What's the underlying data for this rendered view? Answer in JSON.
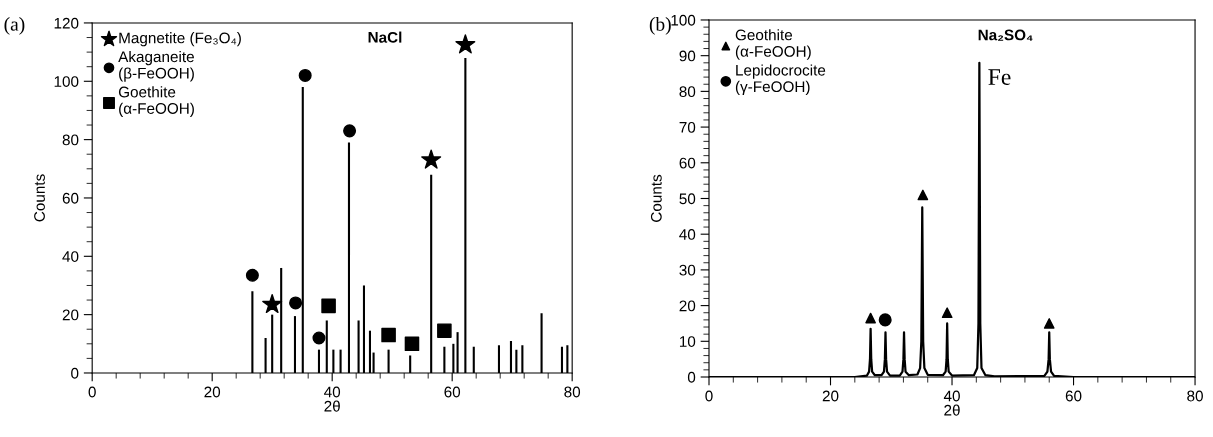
{
  "chart_data": [
    {
      "type": "bar",
      "title": "NaCl",
      "xlabel": "2θ",
      "ylabel": "Counts",
      "annotations": [
        "(a)"
      ],
      "legend": "top left",
      "grid": false,
      "xlim": [
        0,
        80
      ],
      "xticks": [
        0,
        {
          "value": 4,
          "label": null
        },
        {
          "value": 8,
          "label": null
        },
        {
          "value": 12,
          "label": null
        },
        {
          "value": 16,
          "label": null
        },
        20,
        {
          "value": 24,
          "label": null
        },
        {
          "value": 28,
          "label": null
        },
        {
          "value": 32,
          "label": null
        },
        {
          "value": 36,
          "label": null
        },
        40,
        {
          "value": 44,
          "label": null
        },
        {
          "value": 48,
          "label": null
        },
        {
          "value": 52,
          "label": null
        },
        {
          "value": 56,
          "label": null
        },
        60,
        {
          "value": 64,
          "label": null
        },
        {
          "value": 68,
          "label": null
        },
        {
          "value": 72,
          "label": null
        },
        {
          "value": 76,
          "label": null
        },
        80
      ],
      "ylim": [
        0,
        120
      ],
      "yticks": [
        0,
        {
          "value": 5,
          "label": null
        },
        {
          "value": 10,
          "label": null
        },
        {
          "value": 15,
          "label": null
        },
        20,
        {
          "value": 25,
          "label": null
        },
        {
          "value": 30,
          "label": null
        },
        {
          "value": 35,
          "label": null
        },
        40,
        {
          "value": 45,
          "label": null
        },
        {
          "value": 50,
          "label": null
        },
        {
          "value": 55,
          "label": null
        },
        60,
        {
          "value": 65,
          "label": null
        },
        {
          "value": 70,
          "label": null
        },
        {
          "value": 75,
          "label": null
        },
        80,
        {
          "value": 85,
          "label": null
        },
        {
          "value": 90,
          "label": null
        },
        {
          "value": 95,
          "label": null
        },
        100,
        {
          "value": 105,
          "label": null
        },
        {
          "value": 110,
          "label": null
        },
        {
          "value": 115,
          "label": null
        },
        120
      ],
      "series": [
        {
          "color": "#000000",
          "x": [
            26.7,
            28.9,
            30.0,
            31.5,
            33.8,
            35.1,
            37.8,
            39.1,
            40.2,
            41.4,
            42.8,
            44.4,
            45.3,
            46.3,
            46.9,
            49.4,
            53.0,
            56.5,
            58.7,
            60.2,
            60.9,
            62.2,
            63.6,
            67.8,
            69.8,
            70.7,
            71.7,
            74.9,
            78.3,
            79.2
          ],
          "values": [
            28,
            12,
            20,
            36,
            19.5,
            98,
            8,
            18,
            8,
            8,
            79,
            18,
            30,
            14.5,
            7,
            8,
            6,
            68,
            9,
            10,
            14,
            108,
            9,
            9.5,
            11,
            8,
            9.5,
            20.5,
            9,
            9.5
          ]
        },
        {
          "type": "scatter",
          "name": "Magnetite (Fe₃O₄)",
          "color": "#000000",
          "marker": "star",
          "x": [
            30.0,
            56.5,
            62.2
          ],
          "values": [
            23.5,
            73,
            112.5
          ]
        },
        {
          "type": "scatter",
          "name": "Akaganeite\n(β-FeOOH)",
          "color": "#000000",
          "marker": "circle",
          "x": [
            26.7,
            33.9,
            35.5,
            37.8,
            42.9
          ],
          "values": [
            33.5,
            24,
            102,
            12,
            83
          ]
        },
        {
          "type": "scatter",
          "name": "Goethite\n(α-FeOOH)",
          "color": "#000000",
          "marker": "square",
          "x": [
            39.4,
            49.4,
            53.3,
            58.7
          ],
          "values": [
            23,
            13,
            10,
            14.5
          ]
        }
      ]
    },
    {
      "type": "line",
      "title": "Na₂SO₄",
      "xlabel": "2θ",
      "ylabel": "Counts",
      "annotations": [
        "(b)",
        {
          "text": "Fe",
          "x": 44.5,
          "y": 88
        }
      ],
      "legend": "top left",
      "grid": false,
      "xlim": [
        0,
        80
      ],
      "xticks": [
        0,
        {
          "value": 4,
          "label": null
        },
        {
          "value": 8,
          "label": null
        },
        {
          "value": 12,
          "label": null
        },
        {
          "value": 16,
          "label": null
        },
        20,
        {
          "value": 24,
          "label": null
        },
        {
          "value": 28,
          "label": null
        },
        {
          "value": 32,
          "label": null
        },
        {
          "value": 36,
          "label": null
        },
        40,
        {
          "value": 44,
          "label": null
        },
        {
          "value": 48,
          "label": null
        },
        {
          "value": 52,
          "label": null
        },
        {
          "value": 56,
          "label": null
        },
        60,
        {
          "value": 64,
          "label": null
        },
        {
          "value": 68,
          "label": null
        },
        {
          "value": 72,
          "label": null
        },
        {
          "value": 76,
          "label": null
        },
        80
      ],
      "ylim": [
        0,
        100
      ],
      "yticks": [
        0,
        {
          "value": 2,
          "label": null
        },
        {
          "value": 4,
          "label": null
        },
        {
          "value": 6,
          "label": null
        },
        {
          "value": 8,
          "label": null
        },
        10,
        {
          "value": 12,
          "label": null
        },
        {
          "value": 14,
          "label": null
        },
        {
          "value": 16,
          "label": null
        },
        {
          "value": 18,
          "label": null
        },
        20,
        {
          "value": 22,
          "label": null
        },
        {
          "value": 24,
          "label": null
        },
        {
          "value": 26,
          "label": null
        },
        {
          "value": 28,
          "label": null
        },
        30,
        {
          "value": 32,
          "label": null
        },
        {
          "value": 34,
          "label": null
        },
        {
          "value": 36,
          "label": null
        },
        {
          "value": 38,
          "label": null
        },
        40,
        {
          "value": 42,
          "label": null
        },
        {
          "value": 44,
          "label": null
        },
        {
          "value": 46,
          "label": null
        },
        {
          "value": 48,
          "label": null
        },
        50,
        {
          "value": 52,
          "label": null
        },
        {
          "value": 54,
          "label": null
        },
        {
          "value": 56,
          "label": null
        },
        {
          "value": 58,
          "label": null
        },
        60,
        {
          "value": 62,
          "label": null
        },
        {
          "value": 64,
          "label": null
        },
        {
          "value": 66,
          "label": null
        },
        {
          "value": 68,
          "label": null
        },
        70,
        {
          "value": 72,
          "label": null
        },
        {
          "value": 74,
          "label": null
        },
        {
          "value": 76,
          "label": null
        },
        {
          "value": 78,
          "label": null
        },
        80,
        {
          "value": 82,
          "label": null
        },
        {
          "value": 84,
          "label": null
        },
        {
          "value": 86,
          "label": null
        },
        {
          "value": 88,
          "label": null
        },
        90,
        {
          "value": 92,
          "label": null
        },
        {
          "value": 94,
          "label": null
        },
        {
          "value": 96,
          "label": null
        },
        {
          "value": 98,
          "label": null
        },
        100
      ],
      "series": [
        {
          "color": "#000000",
          "x": [
            0,
            24,
            26.0,
            26.35,
            26.5,
            26.6,
            26.7,
            26.85,
            27.3,
            28.4,
            28.8,
            28.95,
            29.05,
            29.15,
            29.3,
            29.8,
            31.4,
            31.85,
            32.0,
            32.1,
            32.2,
            32.35,
            32.9,
            34.3,
            34.75,
            34.95,
            35.1,
            35.25,
            35.45,
            36.0,
            38.5,
            38.95,
            39.1,
            39.2,
            39.3,
            39.45,
            40.0,
            43.6,
            44.15,
            44.35,
            44.5,
            44.65,
            44.85,
            45.5,
            47,
            55.2,
            55.7,
            55.9,
            56.0,
            56.1,
            56.3,
            56.8,
            60,
            80
          ],
          "values": [
            0,
            0,
            0.4,
            1.5,
            5,
            13.5,
            5,
            1.5,
            0.5,
            0.5,
            1.5,
            5,
            12.5,
            5,
            1.5,
            0.4,
            0.4,
            1.5,
            5,
            12.5,
            5,
            1.5,
            0.5,
            0.7,
            2.5,
            10,
            47.5,
            10,
            2.5,
            0.6,
            0.5,
            1.5,
            5,
            15,
            5,
            1.5,
            0.4,
            0.5,
            2.5,
            15,
            88,
            15,
            2.5,
            0.5,
            0.2,
            0.3,
            1.5,
            5,
            12.5,
            5,
            1.5,
            0.3,
            0,
            0
          ]
        },
        {
          "type": "scatter",
          "name": "Geothite\n(α-FeOOH)",
          "color": "#000000",
          "marker": "triangle",
          "x": [
            26.6,
            35.2,
            39.2,
            56.0
          ],
          "values": [
            16.5,
            51,
            18,
            15
          ]
        },
        {
          "type": "scatter",
          "name": "Lepidocrocite\n(γ-FeOOH)",
          "color": "#000000",
          "marker": "circle",
          "x": [
            29.0
          ],
          "values": [
            16
          ]
        }
      ]
    }
  ]
}
